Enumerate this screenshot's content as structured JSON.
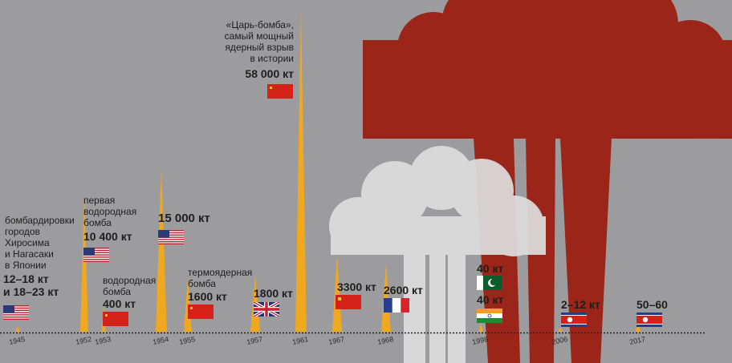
{
  "chart_data": {
    "type": "bar",
    "x": [
      "1945",
      "1952",
      "1953",
      "1954",
      "1955",
      "1957",
      "1961",
      "1967",
      "1968",
      "1998",
      "2006",
      "2017"
    ],
    "series": [
      {
        "values": [
          20,
          10400,
          400,
          15000,
          1600,
          1800,
          58000,
          3300,
          2600,
          40,
          12,
          60
        ]
      }
    ],
    "ylim": [
      0,
      58000
    ],
    "grid": false,
    "legend": "none"
  },
  "colors": {
    "background": "#9c9c9e",
    "spike": "#f0a81f",
    "cloud_red": "#9b2519",
    "cloud_white": "#dededf",
    "text": "#1e1e1e"
  },
  "events": [
    {
      "year": "1945",
      "note_lines": [
        "бомбардировки",
        "городов",
        "Хиросима",
        "и Нагасаки",
        "в Японии"
      ],
      "value_lines": [
        "12–18 кт",
        "и 18–23 кт"
      ],
      "flag": "usa"
    },
    {
      "year": "1952",
      "note_lines": [
        "первая",
        "водородная",
        "бомба"
      ],
      "value_lines": [
        "10 400 кт"
      ],
      "flag": "usa"
    },
    {
      "year": "1953",
      "note_lines": [
        "водородная",
        "бомба"
      ],
      "value_lines": [
        "400 кт"
      ],
      "flag": "ussr"
    },
    {
      "year": "1954",
      "note_lines": [],
      "value_lines": [
        "15 000 кт"
      ],
      "flag": "usa"
    },
    {
      "year": "1955",
      "note_lines": [
        "термоядерная",
        "бомба"
      ],
      "value_lines": [
        "1600 кт"
      ],
      "flag": "ussr"
    },
    {
      "year": "1957",
      "note_lines": [],
      "value_lines": [
        "1800 кт"
      ],
      "flag": "uk"
    },
    {
      "year": "1961",
      "note_lines": [
        "«Царь-бомба»,",
        "самый мощный",
        "ядерный взрыв",
        "в истории"
      ],
      "value_lines": [
        "58 000 кт"
      ],
      "flag": "ussr"
    },
    {
      "year": "1967",
      "note_lines": [],
      "value_lines": [
        "3300 кт"
      ],
      "flag": "china"
    },
    {
      "year": "1968",
      "note_lines": [],
      "value_lines": [
        "2600 кт"
      ],
      "flag": "france"
    },
    {
      "year": "1998",
      "note_lines": [],
      "value_lines": [
        "40 кт"
      ],
      "flag": "pakistan"
    },
    {
      "year": "1998",
      "note_lines": [],
      "value_lines": [
        "40 кт"
      ],
      "flag": "india"
    },
    {
      "year": "2006",
      "note_lines": [],
      "value_lines": [
        "2–12 кт"
      ],
      "flag": "north-korea"
    },
    {
      "year": "2017",
      "note_lines": [],
      "value_lines": [
        "50–60"
      ],
      "flag": "north-korea"
    }
  ]
}
